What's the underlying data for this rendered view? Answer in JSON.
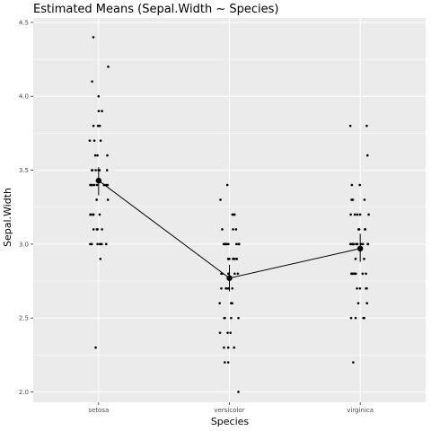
{
  "chart_data": {
    "type": "scatter",
    "title": "Estimated Means (Sepal.Width ~ Species)",
    "xlabel": "Species",
    "ylabel": "Sepal.Width",
    "categories": [
      "setosa",
      "versicolor",
      "virginica"
    ],
    "ylim": [
      1.93,
      4.53
    ],
    "yticks": [
      "2.0",
      "2.5",
      "3.0",
      "3.5",
      "4.0",
      "4.5"
    ],
    "grid": true,
    "legend": "none",
    "colors": {
      "panel": "#ebebeb",
      "grid_major": "#ffffff",
      "points": "#000000",
      "means": "#000000"
    },
    "means": [
      {
        "species": "setosa",
        "mean": 3.43,
        "ci": [
          3.33,
          3.52
        ]
      },
      {
        "species": "versicolor",
        "mean": 2.77,
        "ci": [
          2.68,
          2.86
        ]
      },
      {
        "species": "virginica",
        "mean": 2.97,
        "ci": [
          2.88,
          3.07
        ]
      }
    ],
    "series": [
      {
        "category": "setosa",
        "values": [
          3.5,
          3.0,
          3.2,
          3.1,
          3.6,
          3.9,
          3.4,
          3.4,
          2.9,
          3.1,
          3.7,
          3.4,
          3.0,
          3.0,
          4.0,
          4.4,
          3.9,
          3.5,
          3.8,
          3.8,
          3.4,
          3.7,
          3.6,
          3.3,
          3.4,
          3.0,
          3.4,
          3.5,
          3.4,
          3.2,
          3.1,
          3.4,
          4.1,
          4.2,
          3.1,
          3.2,
          3.5,
          3.6,
          3.0,
          3.4,
          3.5,
          2.3,
          3.2,
          3.5,
          3.8,
          3.0,
          3.8,
          3.2,
          3.7,
          3.3
        ]
      },
      {
        "category": "versicolor",
        "values": [
          3.2,
          3.2,
          3.1,
          2.3,
          2.8,
          2.8,
          3.3,
          2.4,
          2.9,
          2.7,
          2.0,
          3.0,
          2.2,
          2.9,
          2.9,
          3.1,
          3.0,
          2.7,
          2.2,
          2.5,
          3.2,
          2.8,
          2.5,
          2.8,
          2.9,
          3.0,
          2.8,
          3.0,
          2.9,
          2.6,
          2.4,
          2.4,
          2.7,
          2.7,
          3.0,
          3.4,
          3.1,
          2.3,
          3.0,
          2.5,
          2.6,
          3.0,
          2.6,
          2.3,
          2.7,
          3.0,
          2.9,
          2.9,
          2.5,
          2.8
        ]
      },
      {
        "category": "virginica",
        "values": [
          3.3,
          2.7,
          3.0,
          2.9,
          3.0,
          3.0,
          2.5,
          2.9,
          2.5,
          3.6,
          3.2,
          2.7,
          3.0,
          2.5,
          2.8,
          3.2,
          3.0,
          3.8,
          2.6,
          2.2,
          3.2,
          2.8,
          2.8,
          2.7,
          3.3,
          3.2,
          2.8,
          3.0,
          2.8,
          3.0,
          2.8,
          3.8,
          2.8,
          2.8,
          2.6,
          3.0,
          3.4,
          3.1,
          3.0,
          3.1,
          3.1,
          3.1,
          2.7,
          3.2,
          3.3,
          3.0,
          2.5,
          3.0,
          3.4,
          3.0
        ]
      }
    ]
  }
}
